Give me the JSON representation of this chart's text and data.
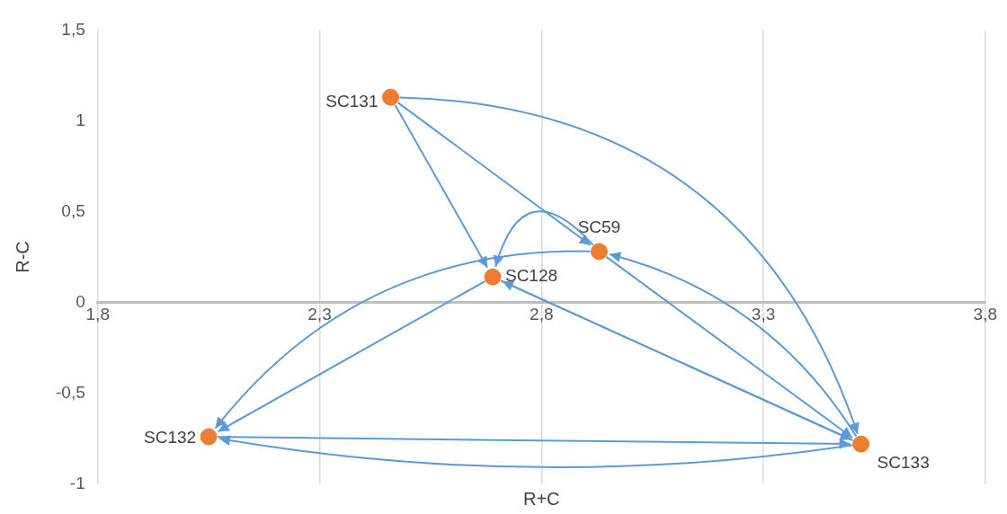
{
  "chart_data": {
    "type": "scatter",
    "xlabel": "R+C",
    "ylabel": "R-C",
    "x": [
      2.46,
      2.93,
      2.69,
      2.05,
      3.52
    ],
    "series": [
      {
        "color": "#ed7d31",
        "values": [
          1.13,
          0.28,
          0.14,
          -0.74,
          -0.78
        ]
      }
    ],
    "xlim": [
      1.8,
      3.8
    ],
    "ylim": [
      -1,
      1.5
    ],
    "xticks": [
      {
        "value": 1.8,
        "label": "1,8"
      },
      {
        "value": 2.3,
        "label": "2,3"
      },
      {
        "value": 2.8,
        "label": "2,8"
      },
      {
        "value": 3.3,
        "label": "3,3"
      },
      {
        "value": 3.8,
        "label": "3,8"
      }
    ],
    "yticks": [
      {
        "value": -1,
        "label": "-1"
      },
      {
        "value": -0.5,
        "label": "-0,5"
      },
      {
        "value": 0,
        "label": "0"
      },
      {
        "value": 0.5,
        "label": "0,5"
      },
      {
        "value": 1,
        "label": "1"
      },
      {
        "value": 1.5,
        "label": "1,5"
      }
    ],
    "grid": "x",
    "marker": "circle",
    "legend": false,
    "annotations": [
      {
        "text": "SC131",
        "x": 2.46,
        "y": 1.13
      },
      {
        "text": "SC59",
        "x": 2.93,
        "y": 0.28
      },
      {
        "text": "SC128",
        "x": 2.69,
        "y": 0.14
      },
      {
        "text": "SC132",
        "x": 2.05,
        "y": -0.74
      },
      {
        "text": "SC133",
        "x": 3.52,
        "y": -0.78
      }
    ]
  }
}
